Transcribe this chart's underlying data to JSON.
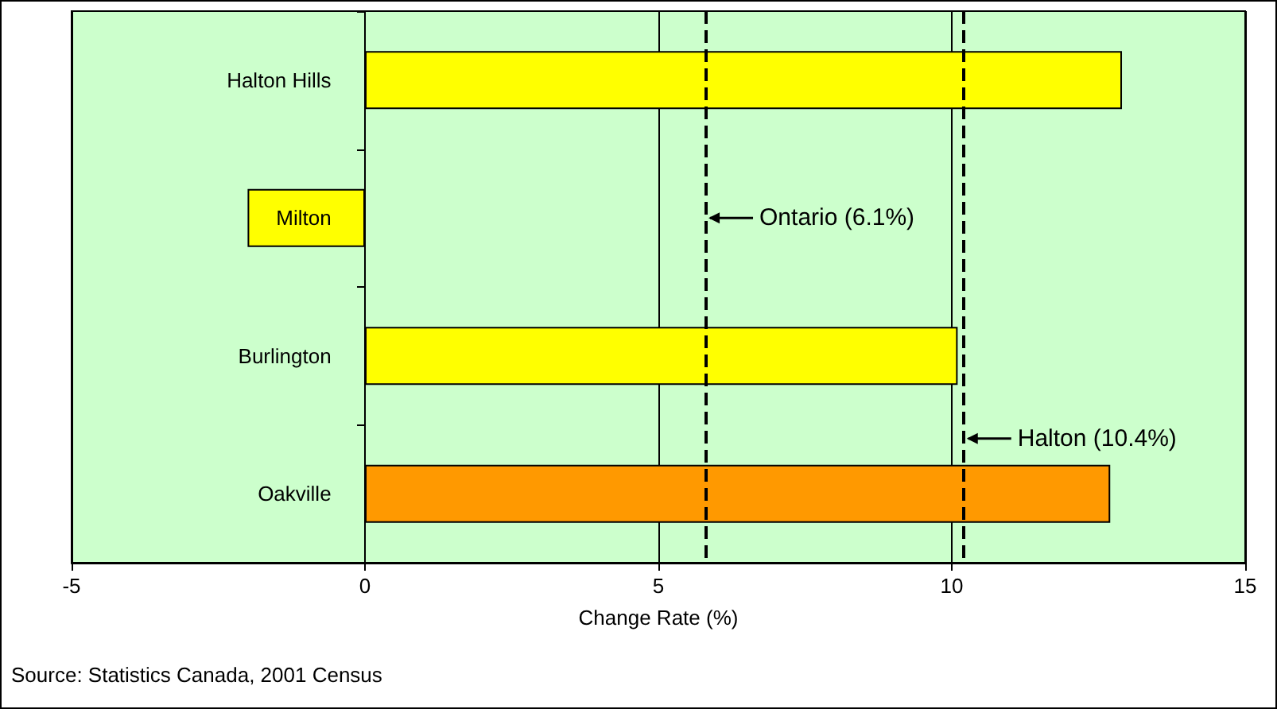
{
  "chart_data": {
    "type": "bar",
    "orientation": "horizontal",
    "xlabel": "Change Rate (%)",
    "categories": [
      "Halton Hills",
      "Milton",
      "Burlington",
      "Oakville"
    ],
    "values": [
      12.9,
      -2.0,
      10.1,
      12.7
    ],
    "colors": [
      "#ffff00",
      "#ffff00",
      "#ffff00",
      "#ff9900"
    ],
    "xlim": [
      -5,
      15
    ],
    "xticks": [
      -5,
      0,
      5,
      10,
      15
    ],
    "grid": "x",
    "ref_lines": [
      {
        "axis": "x",
        "value": 5.8,
        "label": "Ontario (6.1%)",
        "line_style": "dashed",
        "color": "#000000"
      },
      {
        "axis": "x",
        "value": 10.2,
        "label": "Halton (10.4%)",
        "line_style": "dashed",
        "color": "#000000"
      }
    ],
    "annotations": [
      "Source: Statistics Canada, 2001 Census"
    ]
  }
}
